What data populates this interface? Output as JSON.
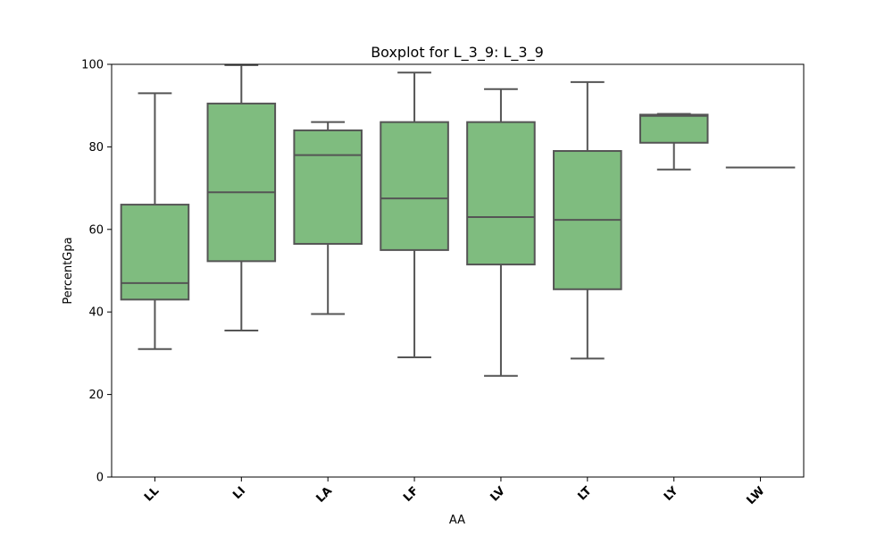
{
  "chart_data": {
    "type": "boxplot",
    "title": "Boxplot for L_3_9: L_3_9",
    "xlabel": "AA",
    "ylabel": "PercentGpa",
    "ylim": [
      0,
      100
    ],
    "yticks": [
      0,
      20,
      40,
      60,
      80,
      100
    ],
    "grid": false,
    "legend": "none",
    "colors": {
      "box_fill": "#7fbc7f",
      "line": "#555555",
      "axis": "#000000"
    },
    "categories": [
      "LL",
      "LI",
      "LA",
      "LF",
      "LV",
      "LT",
      "LY",
      "LW"
    ],
    "boxes": [
      {
        "category": "LL",
        "whisker_low": 31,
        "q1": 43,
        "median": 47,
        "q3": 66,
        "whisker_high": 93
      },
      {
        "category": "LI",
        "whisker_low": 35.5,
        "q1": 52.3,
        "median": 69,
        "q3": 90.5,
        "whisker_high": 99.8
      },
      {
        "category": "LA",
        "whisker_low": 39.5,
        "q1": 56.5,
        "median": 78,
        "q3": 84,
        "whisker_high": 86
      },
      {
        "category": "LF",
        "whisker_low": 29,
        "q1": 55,
        "median": 67.5,
        "q3": 86,
        "whisker_high": 98
      },
      {
        "category": "LV",
        "whisker_low": 24.5,
        "q1": 51.5,
        "median": 63,
        "q3": 86,
        "whisker_high": 94
      },
      {
        "category": "LT",
        "whisker_low": 28.7,
        "q1": 45.5,
        "median": 62.3,
        "q3": 79,
        "whisker_high": 95.7
      },
      {
        "category": "LY",
        "whisker_low": 74.5,
        "q1": 81,
        "median": 87.5,
        "q3": 87.8,
        "whisker_high": 88
      },
      {
        "category": "LW",
        "whisker_low": 75,
        "q1": 75,
        "median": 75,
        "q3": 75,
        "whisker_high": 75
      }
    ]
  }
}
